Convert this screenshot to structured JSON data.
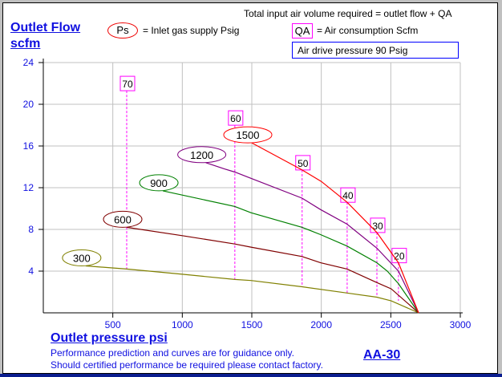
{
  "header": {
    "total_note": "Total input air volume required = outlet flow + QA",
    "ps_symbol": "Ps",
    "ps_legend": "= Inlet gas supply  Psig",
    "qa_symbol": "QA",
    "qa_legend": "= Air consumption  Scfm",
    "air_drive": "Air drive pressure  90 Psig"
  },
  "footer": {
    "line1": "Performance prediction and curves are for guidance only.",
    "line2": "Should certified performance be required please contact factory.",
    "model": "AA-30"
  },
  "chart_data": {
    "type": "line",
    "ylabel_line1": "Outlet Flow",
    "ylabel_line2": "scfm",
    "xlabel": "Outlet pressure   psi",
    "xlim": [
      0,
      3000
    ],
    "ylim": [
      0,
      24
    ],
    "xticks": [
      500,
      1000,
      1500,
      2000,
      2500,
      3000
    ],
    "yticks": [
      4,
      8,
      12,
      16,
      20,
      24
    ],
    "grid": true,
    "series": [
      {
        "name": "300",
        "color": "#808000",
        "x": [
          305,
          600,
          1000,
          1378,
          1494,
          1862,
          2186,
          2400,
          2503,
          2700
        ],
        "y": [
          4.5,
          4.2,
          3.7,
          3.2,
          3.1,
          2.5,
          1.9,
          1.5,
          1.15,
          0
        ]
      },
      {
        "name": "600",
        "color": "#800000",
        "x": [
          600,
          1000,
          1378,
          1494,
          1862,
          1995,
          2186,
          2400,
          2503,
          2700
        ],
        "y": [
          8.2,
          7.4,
          6.6,
          6.3,
          5.4,
          4.8,
          4.2,
          2.9,
          2.3,
          0
        ]
      },
      {
        "name": "900",
        "color": "#008000",
        "x": [
          860,
          1378,
          1494,
          1862,
          1995,
          2186,
          2400,
          2475,
          2555,
          2700
        ],
        "y": [
          11.7,
          10.2,
          9.6,
          8.2,
          7.5,
          6.4,
          4.8,
          4.0,
          2.8,
          0
        ]
      },
      {
        "name": "1200",
        "color": "#800080",
        "x": [
          1169,
          1303,
          1378,
          1494,
          1861,
          1995,
          2186,
          2400,
          2555,
          2700
        ],
        "y": [
          14.4,
          13.8,
          13.5,
          12.9,
          11.0,
          9.9,
          8.5,
          6.2,
          4.0,
          0
        ]
      },
      {
        "name": "1500",
        "color": "#ff0000",
        "x": [
          1500,
          1862,
          2000,
          2186,
          2400,
          2555,
          2700
        ],
        "y": [
          16.3,
          13.7,
          12.6,
          10.6,
          7.7,
          4.8,
          0
        ]
      }
    ],
    "qa_lines": [
      {
        "label": "70",
        "x": 600,
        "y_top": 21.3,
        "y_bottom": 4.2
      },
      {
        "label": "60",
        "x": 1378,
        "y_top": 16.7,
        "y_bottom": 3.2
      },
      {
        "label": "50",
        "x": 1862,
        "y_top": 13.7,
        "y_bottom": 2.5
      },
      {
        "label": "40",
        "x": 2186,
        "y_top": 10.6,
        "y_bottom": 1.9
      },
      {
        "label": "30",
        "x": 2400,
        "y_top": 7.7,
        "y_bottom": 1.5
      },
      {
        "label": "20",
        "x": 2555,
        "y_top": 4.8,
        "y_bottom": 1.15
      }
    ],
    "qa_color": "#ff00ff",
    "axis_color": "#1010e0"
  }
}
